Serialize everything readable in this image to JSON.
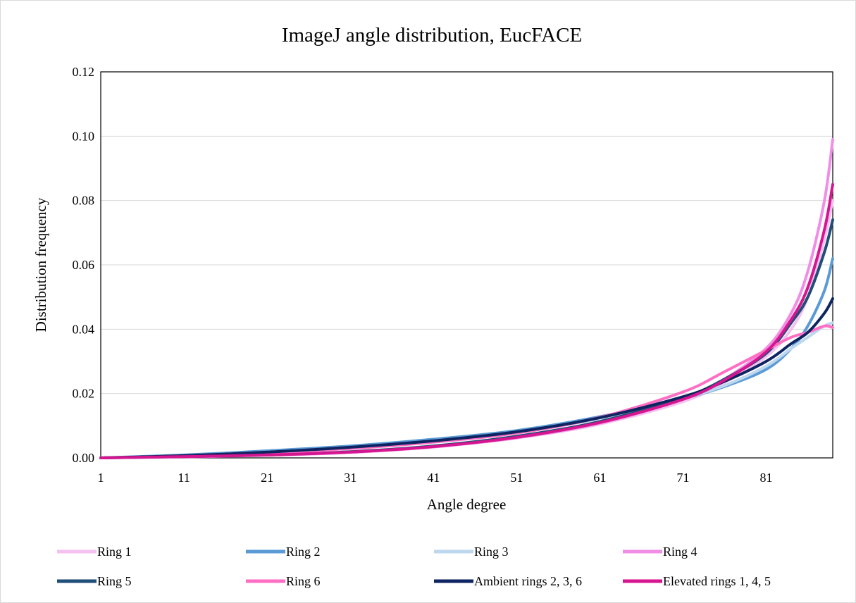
{
  "chart_data": {
    "type": "line",
    "title": "ImageJ angle distribution, EucFACE",
    "xlabel": "Angle degree",
    "ylabel": "Distribution frequency",
    "xlim": [
      1,
      89
    ],
    "ylim": [
      0,
      0.12
    ],
    "x_ticks": [
      "1",
      "11",
      "21",
      "31",
      "41",
      "51",
      "61",
      "71",
      "81"
    ],
    "y_ticks": [
      "0.00",
      "0.02",
      "0.04",
      "0.06",
      "0.08",
      "0.10",
      "0.12"
    ],
    "grid": "horizontal",
    "legend_position": "bottom",
    "x": [
      1,
      11,
      21,
      31,
      41,
      51,
      61,
      71,
      76,
      81,
      84,
      86,
      88,
      89
    ],
    "series": [
      {
        "name": "Ring 1",
        "color": "#f4c1f0",
        "values": [
          0,
          0.0004,
          0.0009,
          0.0017,
          0.0034,
          0.0062,
          0.0105,
          0.0175,
          0.0235,
          0.0315,
          0.04,
          0.05,
          0.068,
          0.08
        ]
      },
      {
        "name": "Ring 2",
        "color": "#5b9bd5",
        "values": [
          0,
          0.0009,
          0.0022,
          0.0037,
          0.0058,
          0.0085,
          0.0128,
          0.0185,
          0.0222,
          0.0275,
          0.034,
          0.041,
          0.052,
          0.062
        ]
      },
      {
        "name": "Ring 3",
        "color": "#bdd7ee",
        "values": [
          0,
          0.0007,
          0.0018,
          0.0032,
          0.0052,
          0.008,
          0.0122,
          0.0185,
          0.0225,
          0.0285,
          0.034,
          0.0375,
          0.041,
          0.042
        ]
      },
      {
        "name": "Ring 4",
        "color": "#f08ee6",
        "values": [
          0,
          0.0003,
          0.0008,
          0.0017,
          0.0034,
          0.0062,
          0.0108,
          0.0182,
          0.0245,
          0.034,
          0.045,
          0.058,
          0.08,
          0.099
        ]
      },
      {
        "name": "Ring 5",
        "color": "#1f4e79",
        "values": [
          0,
          0.0004,
          0.0009,
          0.0019,
          0.0037,
          0.0067,
          0.0113,
          0.0187,
          0.0245,
          0.0325,
          0.042,
          0.05,
          0.064,
          0.074
        ]
      },
      {
        "name": "Ring 6",
        "color": "#ff6fc4",
        "values": [
          0,
          0.0006,
          0.0015,
          0.0029,
          0.0049,
          0.0077,
          0.0126,
          0.0205,
          0.0268,
          0.0335,
          0.0375,
          0.039,
          0.041,
          0.0405
        ]
      },
      {
        "name": "Ambient rings 2, 3, 6",
        "color": "#0e2461",
        "values": [
          0,
          0.0007,
          0.0018,
          0.0033,
          0.0053,
          0.0081,
          0.0125,
          0.019,
          0.0238,
          0.03,
          0.0355,
          0.039,
          0.045,
          0.0495
        ]
      },
      {
        "name": "Elevated rings 1, 4, 5",
        "color": "#d6168f",
        "values": [
          0,
          0.0004,
          0.0009,
          0.0018,
          0.0035,
          0.0064,
          0.011,
          0.0182,
          0.0242,
          0.033,
          0.043,
          0.053,
          0.071,
          0.085
        ]
      }
    ]
  }
}
